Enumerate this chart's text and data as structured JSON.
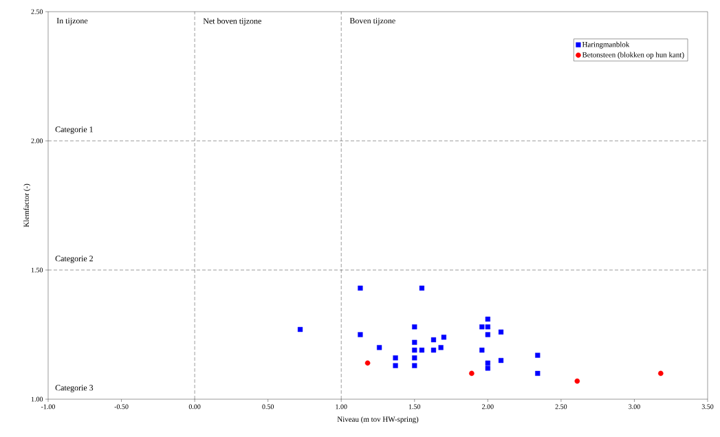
{
  "chart_data": {
    "type": "scatter",
    "xlabel": "Niveau (m tov HW-spring)",
    "ylabel": "Klemfactor (-)",
    "xlim": [
      -1,
      3.5
    ],
    "ylim": [
      1,
      2.5
    ],
    "xticks": [
      {
        "value": -1,
        "label": "-1.00"
      },
      {
        "value": -0.5,
        "label": "-0.50"
      },
      {
        "value": 0,
        "label": "0.00"
      },
      {
        "value": 0.5,
        "label": "0.50"
      },
      {
        "value": 1,
        "label": "1.00"
      },
      {
        "value": 1.5,
        "label": "1.50"
      },
      {
        "value": 2,
        "label": "2.00"
      },
      {
        "value": 2.5,
        "label": "2.50"
      },
      {
        "value": 3,
        "label": "3.00"
      },
      {
        "value": 3.5,
        "label": "3.50"
      }
    ],
    "yticks": [
      {
        "value": 1,
        "label": "1.00"
      },
      {
        "value": 1.5,
        "label": "1.50"
      },
      {
        "value": 2,
        "label": "2.00"
      },
      {
        "value": 2.5,
        "label": "2.50"
      }
    ],
    "grid": false,
    "legend": "top right",
    "series": [
      {
        "name": "Haringmanblok",
        "color": "#0000ff",
        "marker": "square",
        "x": [
          0.72,
          1.26,
          1.13,
          1.13,
          1.55,
          1.37,
          1.37,
          1.5,
          1.5,
          1.5,
          1.5,
          1.5,
          1.55,
          1.63,
          1.63,
          1.68,
          1.7,
          1.96,
          2.0,
          2.0,
          2.0,
          1.96,
          2.0,
          2.0,
          2.09,
          2.09,
          2.34,
          2.34
        ],
        "values": [
          1.27,
          1.2,
          1.43,
          1.25,
          1.43,
          1.16,
          1.13,
          1.28,
          1.22,
          1.19,
          1.16,
          1.13,
          1.19,
          1.23,
          1.19,
          1.2,
          1.24,
          1.28,
          1.31,
          1.28,
          1.25,
          1.19,
          1.14,
          1.12,
          1.26,
          1.15,
          1.17,
          1.1
        ]
      },
      {
        "name": "Betonsteen (blokken op hun kant)",
        "color": "#ff0000",
        "marker": "circle",
        "x": [
          1.18,
          1.89,
          2.61,
          3.18
        ],
        "values": [
          1.14,
          1.1,
          1.07,
          1.1
        ]
      }
    ],
    "annotations": [
      "In tijzone",
      "Categorie 3"
    ],
    "ref_lines": [
      {
        "axis": "x",
        "value": 0,
        "label": "Net boven tijzone",
        "line_style": "dashed"
      },
      {
        "axis": "x",
        "value": 1,
        "label": "Boven tijzone",
        "line_style": "dashed"
      },
      {
        "axis": "y",
        "value": 2,
        "label": "Categorie 1",
        "line_style": "dashed"
      },
      {
        "axis": "y",
        "value": 1.5,
        "label": "Categorie 2",
        "line_style": "dashed"
      }
    ]
  }
}
